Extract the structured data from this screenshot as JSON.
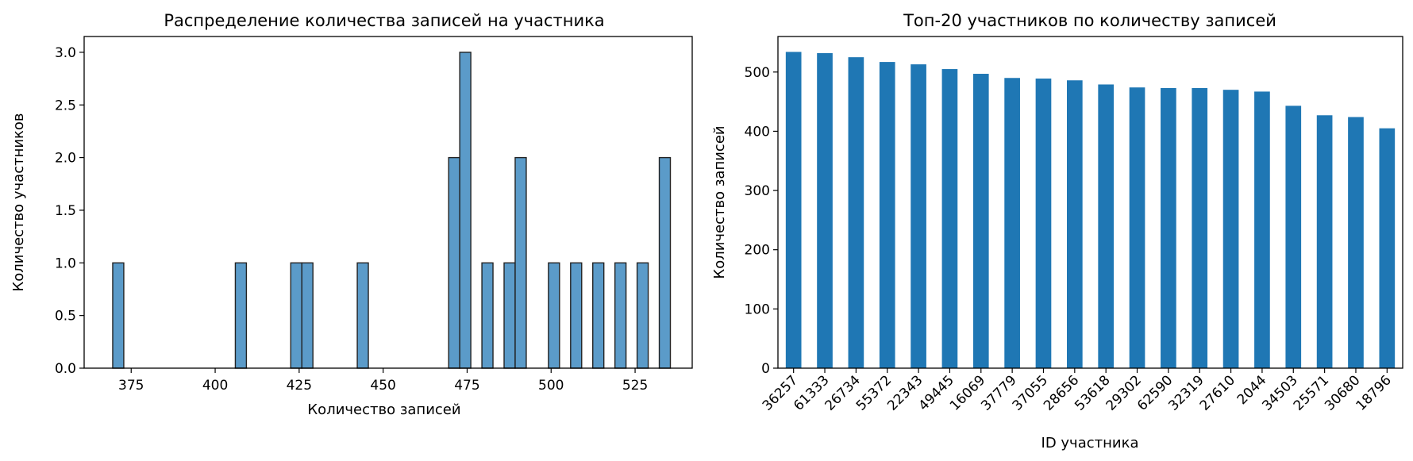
{
  "chart_data": [
    {
      "type": "bar",
      "subtype": "histogram",
      "title": "Распределение количества записей на участника",
      "xlabel": "Количество записей",
      "ylabel": "Количество участников",
      "xlim": [
        361,
        542
      ],
      "ylim": [
        0,
        3.15
      ],
      "x_ticks": [
        375,
        400,
        425,
        450,
        475,
        500,
        525
      ],
      "y_ticks": [
        0.0,
        0.5,
        1.0,
        1.5,
        2.0,
        2.5,
        3.0
      ],
      "y_tick_labels": [
        "0.0",
        "0.5",
        "1.0",
        "1.5",
        "2.0",
        "2.5",
        "3.0"
      ],
      "bin_width": 3.3,
      "bins": [
        {
          "start": 369.5,
          "count": 1
        },
        {
          "start": 406.0,
          "count": 1
        },
        {
          "start": 422.5,
          "count": 1
        },
        {
          "start": 425.8,
          "count": 1
        },
        {
          "start": 442.3,
          "count": 1
        },
        {
          "start": 469.5,
          "count": 2
        },
        {
          "start": 472.8,
          "count": 3
        },
        {
          "start": 479.4,
          "count": 1
        },
        {
          "start": 486.0,
          "count": 1
        },
        {
          "start": 489.3,
          "count": 2
        },
        {
          "start": 499.2,
          "count": 1
        },
        {
          "start": 505.8,
          "count": 1
        },
        {
          "start": 512.4,
          "count": 1
        },
        {
          "start": 519.0,
          "count": 1
        },
        {
          "start": 525.6,
          "count": 1
        },
        {
          "start": 532.2,
          "count": 2
        }
      ],
      "color": "#5b9bc9",
      "edge_color": "#222222"
    },
    {
      "type": "bar",
      "title": "Топ-20 участников по количеству записей",
      "xlabel": "ID участника",
      "ylabel": "Количество записей",
      "ylim": [
        0,
        560
      ],
      "y_ticks": [
        0,
        100,
        200,
        300,
        400,
        500
      ],
      "categories": [
        "36257",
        "61333",
        "26734",
        "55372",
        "22343",
        "49445",
        "16069",
        "37779",
        "37055",
        "28656",
        "53618",
        "29302",
        "62590",
        "32319",
        "27610",
        "2044",
        "34503",
        "25571",
        "30680",
        "18796"
      ],
      "values": [
        534,
        532,
        525,
        517,
        513,
        505,
        497,
        490,
        489,
        486,
        479,
        474,
        473,
        473,
        470,
        467,
        443,
        427,
        424,
        405
      ],
      "color": "#1f77b4"
    }
  ]
}
